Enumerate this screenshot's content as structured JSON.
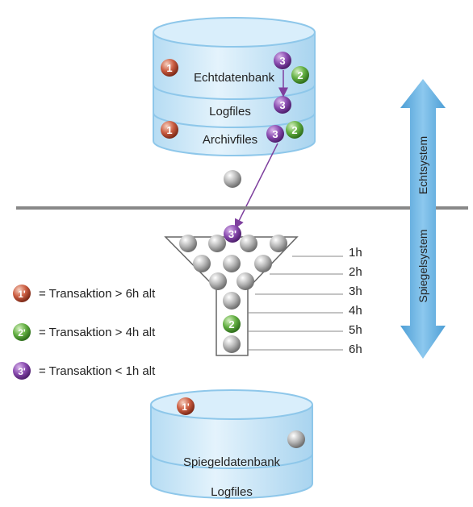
{
  "top_db": {
    "layers": [
      "Echtdatenbank",
      "Logfiles",
      "Archivfiles"
    ]
  },
  "bottom_db": {
    "layers": [
      "Spiegeldatenbank",
      "Logfiles"
    ]
  },
  "arrow": {
    "top_label": "Echtsystem",
    "bottom_label": "Spiegelsystem",
    "color": "#5aa9de"
  },
  "funnel": {
    "hours": [
      "1h",
      "2h",
      "3h",
      "4h",
      "5h",
      "6h"
    ]
  },
  "legend": [
    {
      "badge": "1'",
      "text": "= Transaktion  > 6h alt",
      "color": "#c8553d"
    },
    {
      "badge": "2'",
      "text": "= Transaktion  > 4h alt",
      "color": "#5aaa3a"
    },
    {
      "badge": "3'",
      "text": "= Transaktion  < 1h alt",
      "color": "#7e3f9e"
    }
  ],
  "balls": {
    "one": "1",
    "one_prime": "1'",
    "two": "2",
    "three": "3",
    "three_prime": "3'"
  },
  "colors": {
    "db_fill": "#cfe8f8",
    "db_edge": "#8ec7ea",
    "separator": "#888888",
    "purple": "#7e3f9e",
    "green": "#5aaa3a",
    "red": "#c8553d",
    "grey": "#9a9a9a"
  }
}
